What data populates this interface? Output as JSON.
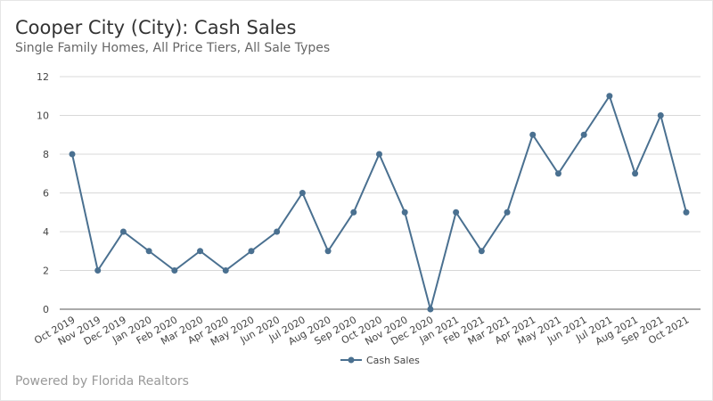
{
  "header": {
    "title": "Cooper City (City): Cash Sales",
    "subtitle": "Single Family Homes, All Price Tiers, All Sale Types"
  },
  "footer": {
    "text": "Powered by Florida Realtors"
  },
  "chart_data": {
    "type": "line",
    "title": "Cooper City (City): Cash Sales",
    "subtitle": "Single Family Homes, All Price Tiers, All Sale Types",
    "categories": [
      "Oct 2019",
      "Nov 2019",
      "Dec 2019",
      "Jan 2020",
      "Feb 2020",
      "Mar 2020",
      "Apr 2020",
      "May 2020",
      "Jun 2020",
      "Jul 2020",
      "Aug 2020",
      "Sep 2020",
      "Oct 2020",
      "Nov 2020",
      "Dec 2020",
      "Jan 2021",
      "Feb 2021",
      "Mar 2021",
      "Apr 2021",
      "May 2021",
      "Jun 2021",
      "Jul 2021",
      "Aug 2021",
      "Sep 2021",
      "Oct 2021"
    ],
    "series": [
      {
        "name": "Cash Sales",
        "color": "#4a7090",
        "values": [
          8,
          2,
          4,
          3,
          2,
          3,
          2,
          3,
          4,
          6,
          3,
          5,
          8,
          5,
          0,
          5,
          3,
          5,
          9,
          7,
          9,
          11,
          7,
          10,
          5
        ]
      }
    ],
    "ylim": [
      0,
      12
    ],
    "yticks": [
      0,
      2,
      4,
      6,
      8,
      10,
      12
    ],
    "grid": true,
    "legend": "bottom"
  }
}
